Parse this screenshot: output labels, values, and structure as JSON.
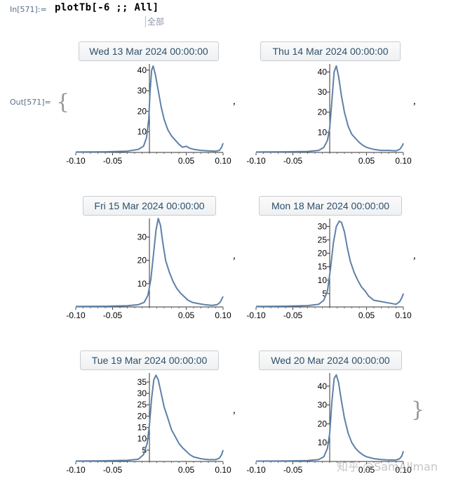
{
  "cell": {
    "in_label": "In[571]:=",
    "code": "plotTb[-6 ;; All]",
    "autocomplete_hint": "全部",
    "out_label": "Out[571]="
  },
  "watermark": "知乎 @SamAllman",
  "colors": {
    "curve": "#5e81a8",
    "button_text": "#2c4f6b",
    "label": "#5a6f8a"
  },
  "chart_data": [
    {
      "type": "line",
      "title": "Wed 13 Mar 2024 00:00:00",
      "x_ticks": [
        "-0.10",
        "-0.05",
        "0.05",
        "0.10"
      ],
      "xlim": [
        -0.1,
        0.1
      ],
      "y_ticks": [
        10,
        20,
        30,
        40
      ],
      "ylim": [
        0,
        43
      ],
      "series": [
        {
          "x": [
            -0.1,
            -0.06,
            -0.03,
            -0.015,
            -0.008,
            -0.004,
            -0.001,
            0.001,
            0.003,
            0.005,
            0.008,
            0.012,
            0.016,
            0.02,
            0.025,
            0.03,
            0.035,
            0.04,
            0.045,
            0.05,
            0.055,
            0.06,
            0.07,
            0.08,
            0.09,
            0.095,
            0.098,
            0.1
          ],
          "y": [
            0.2,
            0.3,
            0.6,
            1.5,
            3,
            7,
            16,
            30,
            40,
            42,
            38,
            30,
            22,
            16,
            11,
            8,
            6,
            4,
            2.5,
            3,
            2,
            1.5,
            1,
            0.8,
            0.6,
            1,
            2.5,
            4.5
          ]
        }
      ]
    },
    {
      "type": "line",
      "title": "Thu 14 Mar 2024 00:00:00",
      "x_ticks": [
        "-0.10",
        "-0.05",
        "0.05",
        "0.10"
      ],
      "xlim": [
        -0.1,
        0.1
      ],
      "y_ticks": [
        10,
        20,
        30,
        40
      ],
      "ylim": [
        0,
        44
      ],
      "series": [
        {
          "x": [
            -0.1,
            -0.06,
            -0.03,
            -0.015,
            -0.008,
            -0.003,
            0.0,
            0.003,
            0.006,
            0.009,
            0.012,
            0.016,
            0.02,
            0.025,
            0.03,
            0.035,
            0.04,
            0.045,
            0.05,
            0.055,
            0.06,
            0.07,
            0.08,
            0.09,
            0.095,
            0.098,
            0.1
          ],
          "y": [
            0.2,
            0.3,
            0.5,
            1,
            2.5,
            6,
            12,
            26,
            40,
            43,
            38,
            28,
            20,
            13,
            9,
            7,
            5,
            3.5,
            2.5,
            2,
            1.5,
            1,
            1,
            0.8,
            1.5,
            3,
            4.5
          ]
        }
      ]
    },
    {
      "type": "line",
      "title": "Fri 15 Mar 2024 00:00:00",
      "x_ticks": [
        "-0.10",
        "-0.05",
        "0.05",
        "0.10"
      ],
      "xlim": [
        -0.1,
        0.1
      ],
      "y_ticks": [
        10,
        20,
        30
      ],
      "ylim": [
        0,
        38
      ],
      "series": [
        {
          "x": [
            -0.1,
            -0.06,
            -0.03,
            -0.015,
            -0.007,
            -0.002,
            0.002,
            0.006,
            0.009,
            0.012,
            0.015,
            0.018,
            0.022,
            0.027,
            0.032,
            0.037,
            0.042,
            0.047,
            0.052,
            0.058,
            0.065,
            0.075,
            0.085,
            0.092,
            0.096,
            0.1
          ],
          "y": [
            0.2,
            0.3,
            0.5,
            1,
            2,
            5,
            12,
            24,
            33,
            38,
            35,
            28,
            20,
            15,
            11,
            8,
            6,
            4.5,
            3,
            2,
            1.5,
            1,
            0.7,
            1,
            2,
            4.5
          ]
        }
      ]
    },
    {
      "type": "line",
      "title": "Mon 18 Mar 2024 00:00:00",
      "x_ticks": [
        "-0.10",
        "-0.05",
        "0.05",
        "0.10"
      ],
      "xlim": [
        -0.1,
        0.1
      ],
      "y_ticks": [
        5,
        10,
        15,
        20,
        25,
        30
      ],
      "ylim": [
        0,
        33
      ],
      "series": [
        {
          "x": [
            -0.1,
            -0.06,
            -0.03,
            -0.015,
            -0.008,
            -0.003,
            0.001,
            0.005,
            0.009,
            0.013,
            0.016,
            0.02,
            0.024,
            0.028,
            0.033,
            0.038,
            0.043,
            0.048,
            0.053,
            0.06,
            0.07,
            0.08,
            0.09,
            0.095,
            0.098,
            0.1
          ],
          "y": [
            0.2,
            0.3,
            0.5,
            1,
            2.5,
            6,
            14,
            24,
            30,
            32,
            31.5,
            28,
            22,
            17,
            13,
            10,
            7.5,
            6,
            4,
            2.5,
            2,
            1.5,
            1,
            2,
            3.5,
            5
          ]
        }
      ]
    },
    {
      "type": "line",
      "title": "Tue 19 Mar 2024 00:00:00",
      "x_ticks": [
        "-0.10",
        "-0.05",
        "0.05",
        "0.10"
      ],
      "xlim": [
        -0.1,
        0.1
      ],
      "y_ticks": [
        5,
        10,
        15,
        20,
        25,
        30,
        35
      ],
      "ylim": [
        0,
        39
      ],
      "series": [
        {
          "x": [
            -0.1,
            -0.06,
            -0.03,
            -0.015,
            -0.008,
            -0.003,
            0.0,
            0.003,
            0.006,
            0.009,
            0.012,
            0.016,
            0.02,
            0.025,
            0.03,
            0.035,
            0.04,
            0.045,
            0.05,
            0.055,
            0.06,
            0.07,
            0.08,
            0.09,
            0.095,
            0.098,
            0.1
          ],
          "y": [
            0.2,
            0.3,
            0.5,
            1,
            3,
            8,
            16,
            28,
            36,
            38,
            36,
            30,
            24,
            19,
            14,
            11,
            8,
            6,
            4.5,
            3,
            2,
            1.2,
            0.8,
            0.8,
            1.5,
            3,
            5
          ]
        }
      ]
    },
    {
      "type": "line",
      "title": "Wed 20 Mar 2024 00:00:00",
      "x_ticks": [
        "-0.10",
        "-0.05",
        "0.05",
        "0.10"
      ],
      "xlim": [
        -0.1,
        0.1
      ],
      "y_ticks": [
        10,
        20,
        30,
        40
      ],
      "ylim": [
        0,
        47
      ],
      "series": [
        {
          "x": [
            -0.1,
            -0.06,
            -0.03,
            -0.015,
            -0.008,
            -0.003,
            0.0,
            0.003,
            0.006,
            0.009,
            0.012,
            0.016,
            0.02,
            0.025,
            0.03,
            0.035,
            0.04,
            0.045,
            0.05,
            0.055,
            0.06,
            0.07,
            0.08,
            0.09,
            0.095,
            0.098,
            0.1
          ],
          "y": [
            0.2,
            0.3,
            0.5,
            1,
            2.5,
            7,
            15,
            32,
            44,
            46,
            42,
            32,
            23,
            15,
            10,
            7,
            5,
            3.5,
            2.5,
            2,
            1.5,
            1,
            0.8,
            0.8,
            1.5,
            3,
            5.5
          ]
        }
      ]
    }
  ]
}
